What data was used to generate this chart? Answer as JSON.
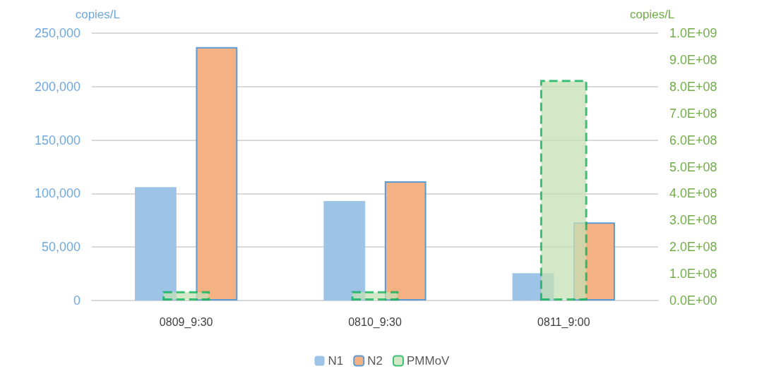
{
  "chart_data": {
    "type": "bar",
    "categories": [
      "0809_9:30",
      "0810_9:30",
      "0811_9:00"
    ],
    "series": [
      {
        "name": "N1",
        "color": "#9dc3e6",
        "values": [
          106000,
          93000,
          25500
        ]
      },
      {
        "name": "N2",
        "color": "#f4b183",
        "values": [
          237000,
          111500,
          73000
        ]
      },
      {
        "name": "PMMoV",
        "color": "#c5e0b4",
        "values": [
          35000000,
          35000000,
          825000000
        ],
        "axis": "y2",
        "line_style": "dashed"
      }
    ],
    "ylabel": "copies/L",
    "y2label": "copies/L",
    "ylim": [
      0,
      250000
    ],
    "yticks": [
      {
        "value": 0,
        "label": "0"
      },
      {
        "value": 50000,
        "label": "50,000"
      },
      {
        "value": 100000,
        "label": "100,000"
      },
      {
        "value": 150000,
        "label": "150,000"
      },
      {
        "value": 200000,
        "label": "200,000"
      },
      {
        "value": 250000,
        "label": "250,000"
      }
    ],
    "y2lim": [
      0,
      1000000000
    ],
    "y2ticks": [
      {
        "value": 0,
        "label": "0.0E+00"
      },
      {
        "value": 100000000,
        "label": "1.0E+08"
      },
      {
        "value": 200000000,
        "label": "2.0E+08"
      },
      {
        "value": 300000000,
        "label": "3.0E+08"
      },
      {
        "value": 400000000,
        "label": "4.0E+08"
      },
      {
        "value": 500000000,
        "label": "5.0E+08"
      },
      {
        "value": 600000000,
        "label": "6.0E+08"
      },
      {
        "value": 700000000,
        "label": "7.0E+08"
      },
      {
        "value": 800000000,
        "label": "8.0E+08"
      },
      {
        "value": 900000000,
        "label": "9.0E+08"
      },
      {
        "value": 1000000000,
        "label": "1.0E+09"
      }
    ],
    "grid": "y",
    "legend": "bottom"
  }
}
